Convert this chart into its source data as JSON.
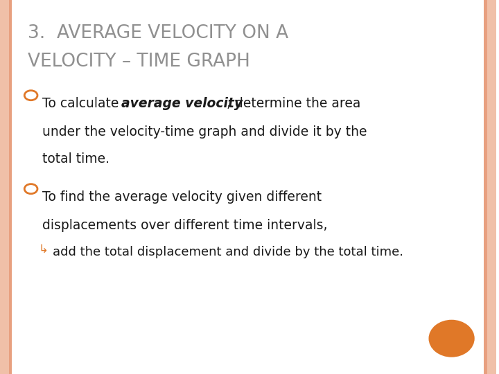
{
  "background_color": "#ffffff",
  "border_color": "#f0c0a8",
  "border_color2": "#e8a080",
  "title_line1": "3.  AVERAGE VELOCITY ON A",
  "title_line2": "VELOCITY – TIME GRAPH",
  "title_color": "#909090",
  "title_fontsize": 19,
  "bullet_color": "#e07828",
  "bullet1_prefix": "To calculate ",
  "bullet1_bold_italic": "average velocity",
  "bullet1_suffix": ", determine the area",
  "bullet1_line2": "under the velocity-time graph and divide it by the",
  "bullet1_line3": "total time.",
  "bullet2_line1": "To find the average velocity given different",
  "bullet2_line2": "displacements over different time intervals,",
  "subbullet_text": "add the total displacement and divide by the total time.",
  "body_fontsize": 13.5,
  "body_color": "#1a1a1a",
  "orange_circle_color": "#e07828"
}
